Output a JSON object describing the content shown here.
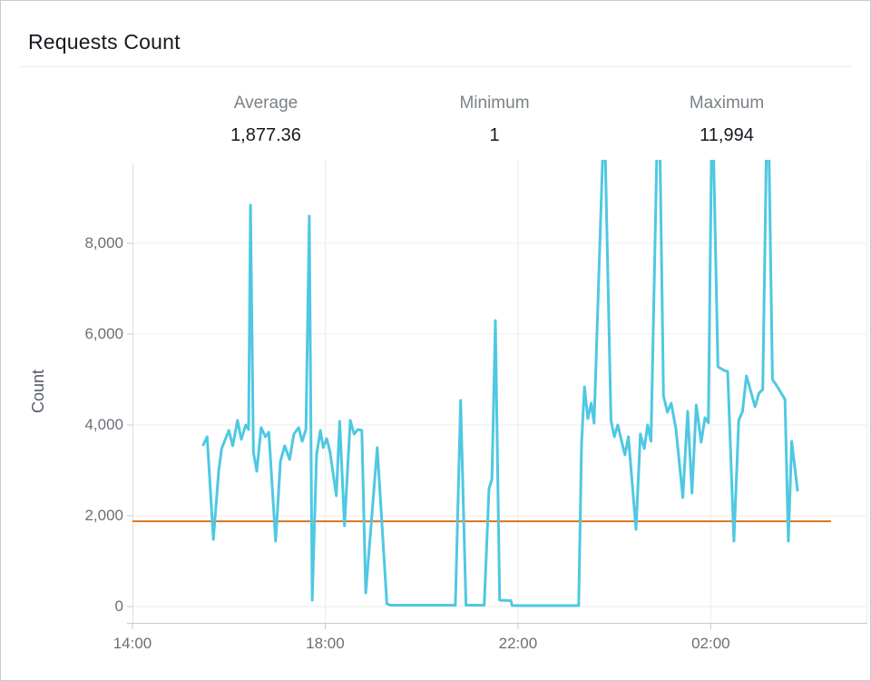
{
  "card": {
    "title": "Requests Count"
  },
  "stats": [
    {
      "label": "Average",
      "value": "1,877.36"
    },
    {
      "label": "Minimum",
      "value": "1"
    },
    {
      "label": "Maximum",
      "value": "11,994"
    }
  ],
  "chart_data": {
    "type": "line",
    "title": "Requests Count",
    "xlabel": "",
    "ylabel": "Count",
    "grid": true,
    "legend": "none",
    "x_axis": {
      "unit": "time (hours, wraps past midnight)",
      "domain_hours": [
        14.0,
        29.25
      ],
      "ticks": [
        {
          "t": 14,
          "label": "14:00"
        },
        {
          "t": 18,
          "label": "18:00"
        },
        {
          "t": 22,
          "label": "22:00"
        },
        {
          "t": 26,
          "label": "02:00"
        }
      ]
    },
    "y_axis": {
      "min": 0,
      "clip_max": 9840,
      "ticks": [
        {
          "v": 0,
          "label": "0"
        },
        {
          "v": 2000,
          "label": "2,000"
        },
        {
          "v": 4000,
          "label": "4,000"
        },
        {
          "v": 6000,
          "label": "6,000"
        },
        {
          "v": 8000,
          "label": "8,000"
        }
      ]
    },
    "average_line": {
      "value": 1877.36,
      "color": "#d9731e"
    },
    "series": [
      {
        "name": "Requests Count",
        "color": "#4fc8e2",
        "points": [
          [
            15.47,
            3560
          ],
          [
            15.55,
            3740
          ],
          [
            15.68,
            1480
          ],
          [
            15.79,
            3000
          ],
          [
            15.85,
            3480
          ],
          [
            16.0,
            3880
          ],
          [
            16.08,
            3540
          ],
          [
            16.18,
            4100
          ],
          [
            16.26,
            3680
          ],
          [
            16.35,
            4000
          ],
          [
            16.41,
            3900
          ],
          [
            16.45,
            8840
          ],
          [
            16.51,
            3400
          ],
          [
            16.58,
            2980
          ],
          [
            16.67,
            3940
          ],
          [
            16.76,
            3740
          ],
          [
            16.83,
            3840
          ],
          [
            16.97,
            1440
          ],
          [
            17.07,
            3200
          ],
          [
            17.16,
            3540
          ],
          [
            17.26,
            3240
          ],
          [
            17.35,
            3800
          ],
          [
            17.45,
            3940
          ],
          [
            17.52,
            3640
          ],
          [
            17.6,
            3900
          ],
          [
            17.67,
            8600
          ],
          [
            17.73,
            140
          ],
          [
            17.82,
            3340
          ],
          [
            17.9,
            3880
          ],
          [
            17.96,
            3500
          ],
          [
            18.03,
            3700
          ],
          [
            18.1,
            3400
          ],
          [
            18.23,
            2440
          ],
          [
            18.3,
            4080
          ],
          [
            18.4,
            1780
          ],
          [
            18.52,
            4100
          ],
          [
            18.6,
            3800
          ],
          [
            18.68,
            3900
          ],
          [
            18.76,
            3880
          ],
          [
            18.84,
            300
          ],
          [
            19.08,
            3500
          ],
          [
            19.28,
            60
          ],
          [
            19.36,
            30
          ],
          [
            20.7,
            30
          ],
          [
            20.81,
            4540
          ],
          [
            20.92,
            30
          ],
          [
            21.3,
            30
          ],
          [
            21.4,
            2600
          ],
          [
            21.46,
            2800
          ],
          [
            21.53,
            6300
          ],
          [
            21.62,
            140
          ],
          [
            21.85,
            130
          ],
          [
            21.88,
            20
          ],
          [
            23.26,
            20
          ],
          [
            23.32,
            3600
          ],
          [
            23.38,
            4840
          ],
          [
            23.45,
            4140
          ],
          [
            23.52,
            4480
          ],
          [
            23.58,
            4040
          ],
          [
            23.79,
            11000
          ],
          [
            23.93,
            4100
          ],
          [
            24.0,
            3740
          ],
          [
            24.07,
            4000
          ],
          [
            24.16,
            3600
          ],
          [
            24.22,
            3340
          ],
          [
            24.29,
            3740
          ],
          [
            24.45,
            1700
          ],
          [
            24.54,
            3800
          ],
          [
            24.62,
            3480
          ],
          [
            24.69,
            4000
          ],
          [
            24.76,
            3640
          ],
          [
            24.92,
            11994
          ],
          [
            25.02,
            4640
          ],
          [
            25.1,
            4280
          ],
          [
            25.18,
            4480
          ],
          [
            25.28,
            3900
          ],
          [
            25.42,
            2400
          ],
          [
            25.52,
            4300
          ],
          [
            25.61,
            2500
          ],
          [
            25.7,
            4440
          ],
          [
            25.8,
            3620
          ],
          [
            25.88,
            4160
          ],
          [
            25.95,
            4050
          ],
          [
            26.03,
            11400
          ],
          [
            26.15,
            5280
          ],
          [
            26.28,
            5200
          ],
          [
            26.35,
            5180
          ],
          [
            26.48,
            1440
          ],
          [
            26.58,
            4100
          ],
          [
            26.66,
            4300
          ],
          [
            26.74,
            5080
          ],
          [
            26.83,
            4740
          ],
          [
            26.92,
            4400
          ],
          [
            27.0,
            4700
          ],
          [
            27.08,
            4780
          ],
          [
            27.18,
            11900
          ],
          [
            27.28,
            5000
          ],
          [
            27.36,
            4880
          ],
          [
            27.44,
            4740
          ],
          [
            27.54,
            4560
          ],
          [
            27.61,
            1440
          ],
          [
            27.68,
            3640
          ],
          [
            27.8,
            2560
          ]
        ]
      }
    ]
  },
  "colors": {
    "series": "#4fc8e2",
    "average": "#d9731e",
    "grid": "#ececec",
    "axis": "#c6cbce",
    "tick_text": "#687078",
    "title": "#16191f",
    "stat_label": "#7b8287",
    "divider": "#eaeded",
    "card_border": "#c9cccc"
  }
}
